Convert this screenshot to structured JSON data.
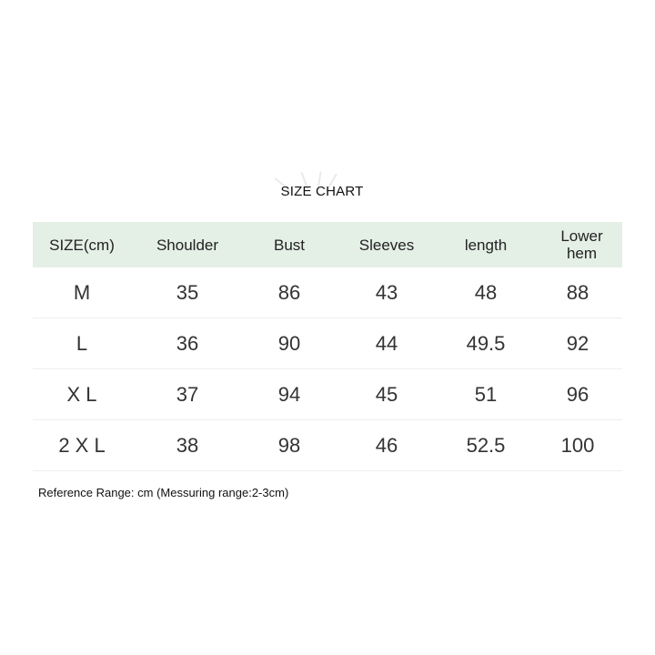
{
  "title": "SIZE CHART",
  "table": {
    "headers": [
      "SIZE(cm)",
      "Shoulder",
      "Bust",
      "Sleeves",
      "length",
      "Lower hem"
    ],
    "rows": [
      [
        "M",
        "35",
        "86",
        "43",
        "48",
        "88"
      ],
      [
        "L",
        "36",
        "90",
        "44",
        "49.5",
        "92"
      ],
      [
        "X L",
        "37",
        "94",
        "45",
        "51",
        "96"
      ],
      [
        "2 X L",
        "38",
        "98",
        "46",
        "52.5",
        "100"
      ]
    ]
  },
  "note": "Reference Range: cm (Messuring range:2-3cm)",
  "colors": {
    "header_bg": "#e4efe6"
  }
}
